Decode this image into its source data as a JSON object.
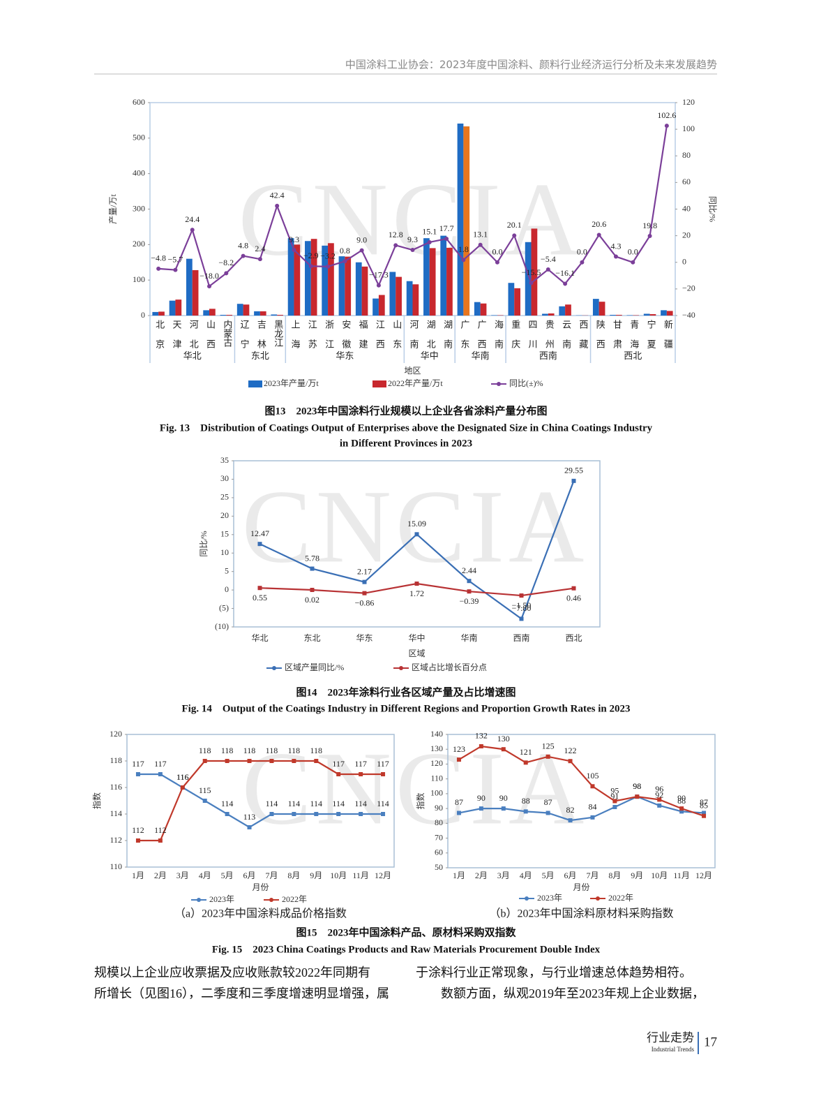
{
  "header": {
    "title": "中国涂料工业协会：2023年度中国涂料、颜料行业经济运行分析及未来发展趋势"
  },
  "watermark": "CNCIA",
  "chart_data": [
    {
      "type": "bar",
      "y_label": "产量/万t",
      "y2_label": "同比/%",
      "x_label": "地区",
      "categories": [
        "北京",
        "天津",
        "河北",
        "山西",
        "内蒙古",
        "辽宁",
        "吉林",
        "黑龙江",
        "上海",
        "江苏",
        "浙江",
        "安徽",
        "福建",
        "江西",
        "山东",
        "河南",
        "湖北",
        "湖南",
        "广东",
        "广西",
        "海南",
        "重庆",
        "四川",
        "贵州",
        "云南",
        "西藏",
        "陕西",
        "甘肃",
        "青海",
        "宁夏",
        "新疆"
      ],
      "groups": [
        {
          "name": "华北",
          "size": 5
        },
        {
          "name": "东北",
          "size": 3
        },
        {
          "name": "华东",
          "size": 7
        },
        {
          "name": "华中",
          "size": 3
        },
        {
          "name": "华南",
          "size": 3
        },
        {
          "name": "西南",
          "size": 5
        },
        {
          "name": "西北",
          "size": 5
        }
      ],
      "series": [
        {
          "name": "2023年产量/万t",
          "type": "bar",
          "color": "#1f6cc4",
          "values": [
            10,
            42,
            160,
            15,
            2,
            33,
            12,
            3,
            218,
            210,
            197,
            167,
            150,
            48,
            123,
            97,
            218,
            225,
            541,
            38,
            1,
            92,
            207,
            5,
            26,
            0.5,
            47,
            2,
            1,
            5,
            15
          ]
        },
        {
          "name": "2022年产量/万t",
          "type": "bar",
          "color": "#c8282e",
          "highlight": {
            "category": "广东",
            "color": "#e8761e"
          },
          "values": [
            11,
            45,
            128,
            19,
            2,
            31,
            12,
            2,
            200,
            216,
            204,
            166,
            138,
            58,
            109,
            88,
            190,
            191,
            533,
            34,
            1,
            77,
            245,
            6,
            31,
            0.5,
            39,
            2,
            1,
            4,
            13
          ]
        },
        {
          "name": "同比(±)%",
          "type": "line",
          "axis": "y2",
          "color": "#7b3f99",
          "values": [
            -4.8,
            -5.7,
            24.4,
            -18.0,
            -8.2,
            4.8,
            2.4,
            42.4,
            9.3,
            -2.9,
            -3.2,
            0.8,
            9.0,
            -17.3,
            12.8,
            9.3,
            15.1,
            17.7,
            1.8,
            13.1,
            0.0,
            20.1,
            -15.5,
            -5.4,
            -16.1,
            0.0,
            20.6,
            4.3,
            0.0,
            19.8,
            102.6
          ],
          "value_labels": [
            "−4.8",
            "−5.7",
            "24.4",
            "−18.0",
            "−8.2",
            "4.8",
            "2.4",
            "42.4",
            "9.3",
            "−2.9",
            "−3.2",
            "0.8",
            "9.0",
            "−17.3",
            "12.8",
            "9.3",
            "15.1",
            "17.7",
            "1.8",
            "13.1",
            "0.0",
            "20.1",
            "−15.5",
            "−5.4",
            "−16.1",
            "0.0",
            "20.6",
            "4.3",
            "0.0",
            "19.8",
            "102.6"
          ]
        }
      ],
      "ylim": [
        0,
        600
      ],
      "yticks": [
        0,
        100,
        200,
        300,
        400,
        500,
        600
      ],
      "y2lim": [
        -40,
        120
      ],
      "y2ticks": [
        {
          "value": -40,
          "label": "−40"
        },
        {
          "value": -20,
          "label": "−20"
        },
        0,
        20,
        40,
        60,
        80,
        100,
        120
      ],
      "grid": false
    },
    {
      "type": "line",
      "y_label": "同比/%",
      "x_label": "区域",
      "categories": [
        "华北",
        "东北",
        "华东",
        "华中",
        "华南",
        "西南",
        "西北"
      ],
      "series": [
        {
          "name": "区域产量同比/%",
          "color": "#3a6fb5",
          "label_side": "above",
          "values": [
            12.47,
            5.78,
            2.17,
            15.09,
            2.44,
            -7.8,
            29.55
          ],
          "value_labels": [
            "12.47",
            "5.78",
            "2.17",
            "15.09",
            "2.44",
            "−7.80",
            "29.55"
          ]
        },
        {
          "name": "区域占比增长百分点",
          "color": "#b83234",
          "label_side": "below",
          "values": [
            0.55,
            0.02,
            -0.86,
            1.72,
            -0.39,
            -1.5,
            0.46
          ],
          "value_labels": [
            "0.55",
            "0.02",
            "−0.86",
            "1.72",
            "−0.39",
            "−1.50",
            "0.46"
          ]
        }
      ],
      "ylim": [
        -10,
        35
      ],
      "yticks": [
        {
          "value": -10,
          "label": "(10)"
        },
        {
          "value": -5,
          "label": "(5)"
        },
        0,
        5,
        10,
        15,
        20,
        25,
        30,
        35
      ],
      "grid": false
    },
    {
      "type": "line",
      "title": "（a）2023年中国涂料成品价格指数",
      "y_label": "指数",
      "x_label": "月份",
      "categories": [
        "1月",
        "2月",
        "3月",
        "4月",
        "5月",
        "6月",
        "7月",
        "8月",
        "9月",
        "10月",
        "11月",
        "12月"
      ],
      "series": [
        {
          "name": "2023年",
          "color": "#4a7fbf",
          "values": [
            117,
            117,
            116,
            115,
            114,
            113,
            114,
            114,
            114,
            114,
            114,
            114
          ]
        },
        {
          "name": "2022年",
          "color": "#c0392b",
          "values": [
            112,
            112,
            116,
            118,
            118,
            118,
            118,
            118,
            118,
            117,
            117,
            117
          ]
        }
      ],
      "ylim": [
        110,
        120
      ],
      "yticks": [
        110,
        112,
        114,
        116,
        118,
        120
      ],
      "grid": false
    },
    {
      "type": "line",
      "title": "（b）2023年中国涂料原材料采购指数",
      "y_label": "指数",
      "x_label": "月份",
      "categories": [
        "1月",
        "2月",
        "3月",
        "4月",
        "5月",
        "6月",
        "7月",
        "8月",
        "9月",
        "10月",
        "11月",
        "12月"
      ],
      "series": [
        {
          "name": "2023年",
          "color": "#4a7fbf",
          "values": [
            87,
            90,
            90,
            88,
            87,
            82,
            84,
            91,
            98,
            92,
            88,
            87
          ]
        },
        {
          "name": "2022年",
          "color": "#c0392b",
          "values": [
            123,
            132,
            130,
            121,
            125,
            122,
            105,
            95,
            98,
            96,
            90,
            85
          ]
        }
      ],
      "ylim": [
        50,
        140
      ],
      "yticks": [
        50,
        60,
        70,
        80,
        90,
        100,
        110,
        120,
        130,
        140
      ],
      "grid": false
    }
  ],
  "captions": [
    {
      "cn": "图13　2023年中国涂料行业规模以上企业各省涂料产量分布图",
      "en": [
        "Fig. 13　Distribution of Coatings Output of Enterprises above the Designated Size in China Coatings Industry",
        "in Different Provinces in 2023"
      ]
    },
    {
      "cn": "图14　2023年涂料行业各区域产量及占比增速图",
      "en": [
        "Fig. 14　Output of the Coatings Industry in Different Regions and Proportion Growth Rates in 2023"
      ]
    },
    {
      "cn": "图15　2023年中国涂料产品、原材料采购双指数",
      "en": [
        "Fig. 15　2023 China Coatings Products and Raw Materials Procurement Double Index"
      ]
    }
  ],
  "body": {
    "left": [
      "规模以上企业应收票据及应收账款较2022年同期有",
      "所增长（见图16），二季度和三季度增速明显增强，属"
    ],
    "right": [
      "于涂料行业正常现象，与行业增速总体趋势相符。",
      "　　数额方面，纵观2019年至2023年规上企业数据，"
    ]
  },
  "footer": {
    "section": "行业走势",
    "section_en": "Industrial Trends",
    "page": "17"
  }
}
